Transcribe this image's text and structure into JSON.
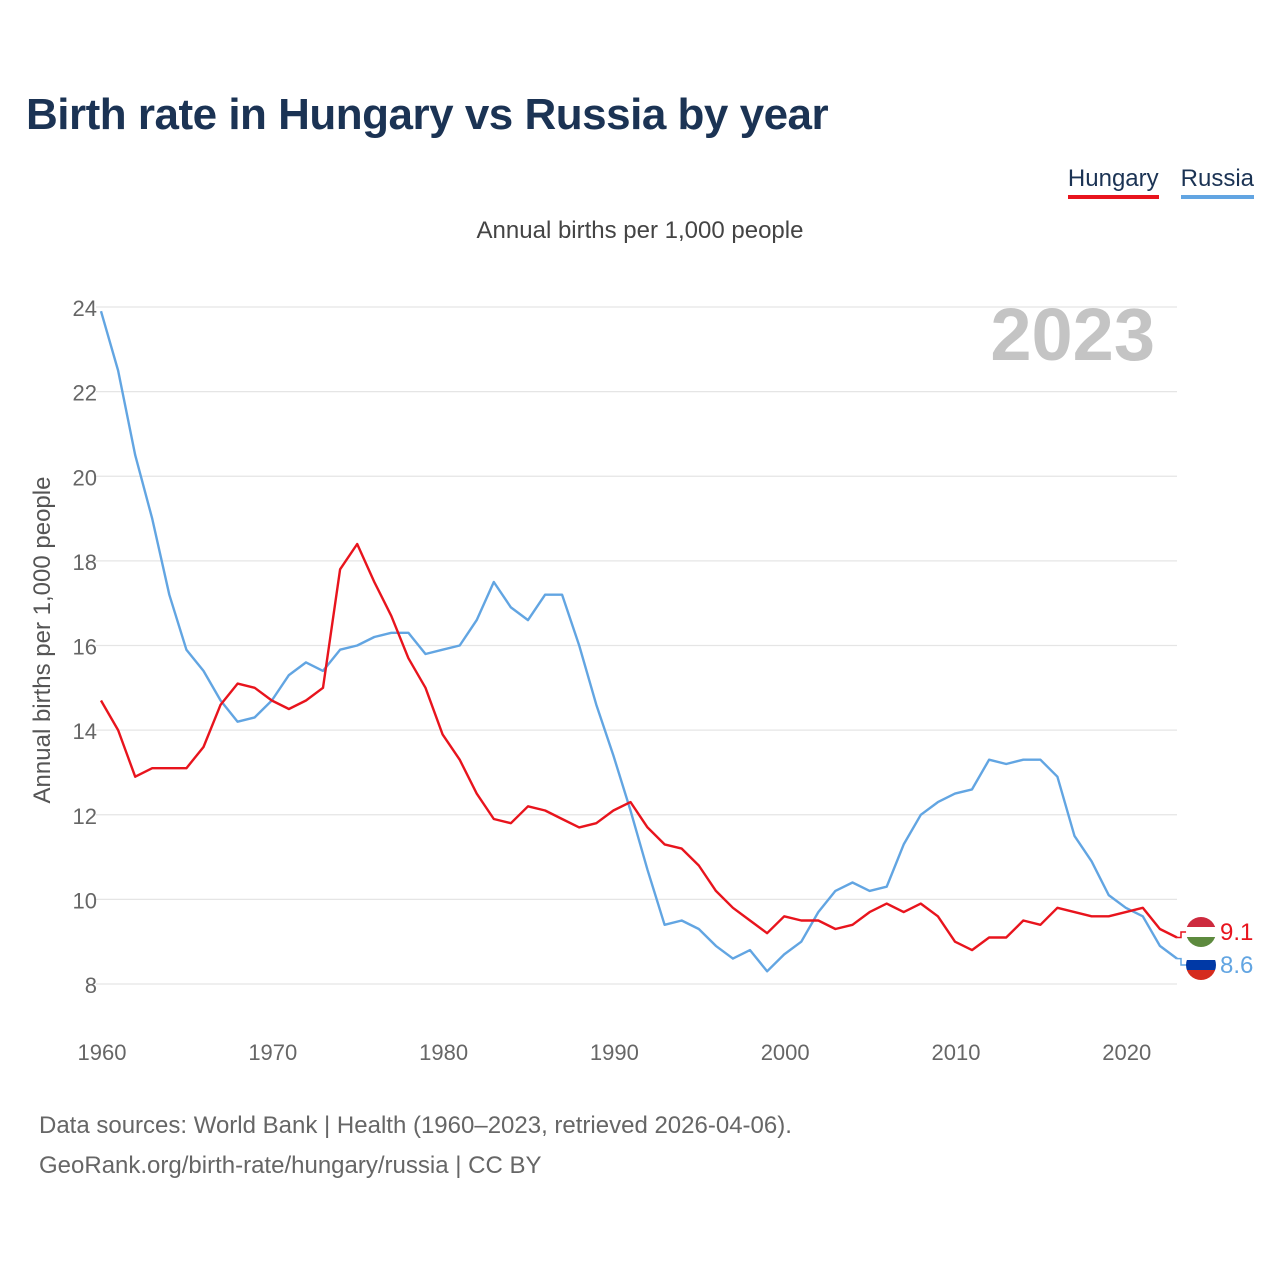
{
  "title": "Birth rate in Hungary vs Russia by year",
  "legend": {
    "hungary": "Hungary",
    "russia": "Russia"
  },
  "subtitle": "Annual births per 1,000 people",
  "year_badge": "2023",
  "footer": {
    "line1": "Data sources: World Bank | Health (1960–2023, retrieved 2026-04-06).",
    "line2": "GeoRank.org/birth-rate/hungary/russia | CC BY"
  },
  "colors": {
    "hungary": "#e8141d",
    "russia": "#62a5e2",
    "grid": "#e5e5e5",
    "axis_text": "#666666"
  },
  "chart_data": {
    "type": "line",
    "title": "Birth rate in Hungary vs Russia by year",
    "ylabel": "Annual births per 1,000 people",
    "xlabel": "",
    "xlim": [
      1960,
      2023
    ],
    "ylim": [
      7,
      24.2
    ],
    "yticks": [
      8,
      10,
      12,
      14,
      16,
      18,
      20,
      22,
      24
    ],
    "xticks": [
      1960,
      1970,
      1980,
      1990,
      2000,
      2010,
      2020
    ],
    "grid": true,
    "legend_position": "top-right",
    "x": [
      1960,
      1961,
      1962,
      1963,
      1964,
      1965,
      1966,
      1967,
      1968,
      1969,
      1970,
      1971,
      1972,
      1973,
      1974,
      1975,
      1976,
      1977,
      1978,
      1979,
      1980,
      1981,
      1982,
      1983,
      1984,
      1985,
      1986,
      1987,
      1988,
      1989,
      1990,
      1991,
      1992,
      1993,
      1994,
      1995,
      1996,
      1997,
      1998,
      1999,
      2000,
      2001,
      2002,
      2003,
      2004,
      2005,
      2006,
      2007,
      2008,
      2009,
      2010,
      2011,
      2012,
      2013,
      2014,
      2015,
      2016,
      2017,
      2018,
      2019,
      2020,
      2021,
      2022,
      2023
    ],
    "series": [
      {
        "name": "Hungary",
        "end_label": "9.1",
        "values": [
          14.7,
          14.0,
          12.9,
          13.1,
          13.1,
          13.1,
          13.6,
          14.6,
          15.1,
          15.0,
          14.7,
          14.5,
          14.7,
          15.0,
          17.8,
          18.4,
          17.5,
          16.7,
          15.7,
          15.0,
          13.9,
          13.3,
          12.5,
          11.9,
          11.8,
          12.2,
          12.1,
          11.9,
          11.7,
          11.8,
          12.1,
          12.3,
          11.7,
          11.3,
          11.2,
          10.8,
          10.2,
          9.8,
          9.5,
          9.2,
          9.6,
          9.5,
          9.5,
          9.3,
          9.4,
          9.7,
          9.9,
          9.7,
          9.9,
          9.6,
          9.0,
          8.8,
          9.1,
          9.1,
          9.5,
          9.4,
          9.8,
          9.7,
          9.6,
          9.6,
          9.7,
          9.8,
          9.3,
          9.1
        ]
      },
      {
        "name": "Russia",
        "end_label": "8.6",
        "values": [
          23.9,
          22.5,
          20.5,
          19.0,
          17.2,
          15.9,
          15.4,
          14.7,
          14.2,
          14.3,
          14.7,
          15.3,
          15.6,
          15.4,
          15.9,
          16.0,
          16.2,
          16.3,
          16.3,
          15.8,
          15.9,
          16.0,
          16.6,
          17.5,
          16.9,
          16.6,
          17.2,
          17.2,
          16.0,
          14.6,
          13.4,
          12.1,
          10.7,
          9.4,
          9.5,
          9.3,
          8.9,
          8.6,
          8.8,
          8.3,
          8.7,
          9.0,
          9.7,
          10.2,
          10.4,
          10.2,
          10.3,
          11.3,
          12.0,
          12.3,
          12.5,
          12.6,
          13.3,
          13.2,
          13.3,
          13.3,
          12.9,
          11.5,
          10.9,
          10.1,
          9.8,
          9.6,
          8.9,
          8.6
        ]
      }
    ]
  }
}
